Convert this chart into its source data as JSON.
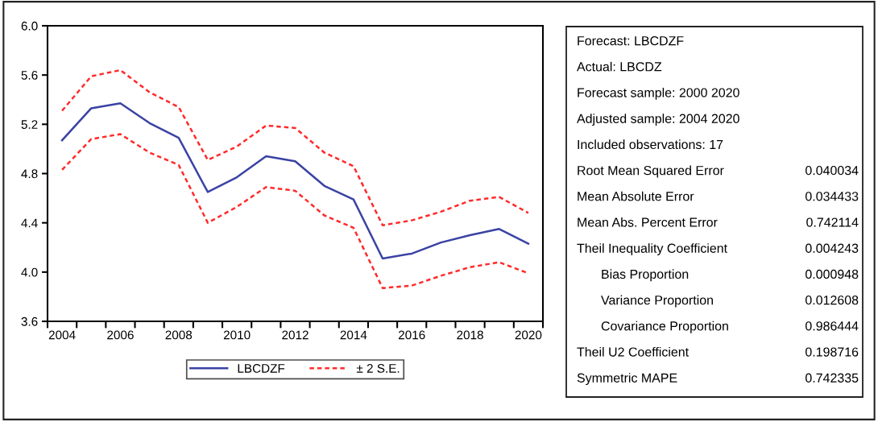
{
  "chart_data": {
    "type": "line",
    "x": [
      2004,
      2005,
      2006,
      2007,
      2008,
      2009,
      2010,
      2011,
      2012,
      2013,
      2014,
      2015,
      2016,
      2017,
      2018,
      2019,
      2020
    ],
    "series": [
      {
        "name": "LBCDZF",
        "color": "#3a43a3",
        "line_style": "solid",
        "values": [
          5.07,
          5.33,
          5.37,
          5.21,
          5.09,
          4.65,
          4.77,
          4.94,
          4.9,
          4.7,
          4.59,
          4.11,
          4.15,
          4.24,
          4.3,
          4.35,
          4.23
        ]
      },
      {
        "name": "± 2 S.E.",
        "color": "#ff2a2a",
        "line_style": "dashed",
        "values": [
          5.31,
          5.59,
          5.64,
          5.46,
          5.34,
          4.91,
          5.02,
          5.19,
          5.17,
          4.97,
          4.86,
          4.38,
          4.42,
          4.49,
          4.58,
          4.61,
          4.48
        ]
      },
      {
        "color": "#ff2a2a",
        "line_style": "dashed",
        "values": [
          4.83,
          5.08,
          5.12,
          4.97,
          4.87,
          4.4,
          4.53,
          4.69,
          4.66,
          4.46,
          4.36,
          3.87,
          3.89,
          3.97,
          4.04,
          4.08,
          3.99
        ]
      }
    ],
    "xlim": [
      2003.5,
      2020.5
    ],
    "xticks": [
      {
        "value": 2003.5,
        "label": null
      },
      {
        "value": 2004.5,
        "label": null
      },
      {
        "value": 2005.5,
        "label": null
      },
      {
        "value": 2006.5,
        "label": null
      },
      {
        "value": 2007.5,
        "label": null
      },
      {
        "value": 2008.5,
        "label": null
      },
      {
        "value": 2009.5,
        "label": null
      },
      {
        "value": 2010.5,
        "label": null
      },
      {
        "value": 2011.5,
        "label": null
      },
      {
        "value": 2012.5,
        "label": null
      },
      {
        "value": 2013.5,
        "label": null
      },
      {
        "value": 2014.5,
        "label": null
      },
      {
        "value": 2015.5,
        "label": null
      },
      {
        "value": 2016.5,
        "label": null
      },
      {
        "value": 2017.5,
        "label": null
      },
      {
        "value": 2018.5,
        "label": null
      },
      {
        "value": 2019.5,
        "label": null
      },
      {
        "value": 2020.5,
        "label": null
      },
      2004,
      2006,
      2008,
      2010,
      2012,
      2014,
      2016,
      2018,
      2020
    ],
    "ylim": [
      3.6,
      6.0
    ],
    "yticks": [
      3.6,
      {
        "value": 4.0,
        "label": "4.0"
      },
      4.4,
      4.8,
      5.2,
      5.6,
      {
        "value": 6.0,
        "label": "6.0"
      }
    ],
    "grid": false,
    "legend": "bottom",
    "annotations": [
      "Forecast: LBCDZF",
      "Actual: LBCDZ",
      "Forecast sample: 2000 2020",
      "Adjusted sample: 2004 2020",
      "Included observations: 17",
      "Root Mean Squared Error",
      "0.040034",
      "Mean Absolute Error",
      "0.034433",
      "Mean Abs. Percent Error",
      "0.742114",
      "Theil Inequality Coefficient",
      "0.004243",
      "Bias Proportion",
      "0.000948",
      "Variance Proportion",
      "0.012608",
      "Covariance Proportion",
      "0.986444",
      "Theil U2 Coefficient",
      "0.198716",
      "Symmetric MAPE",
      "0.742335"
    ]
  }
}
